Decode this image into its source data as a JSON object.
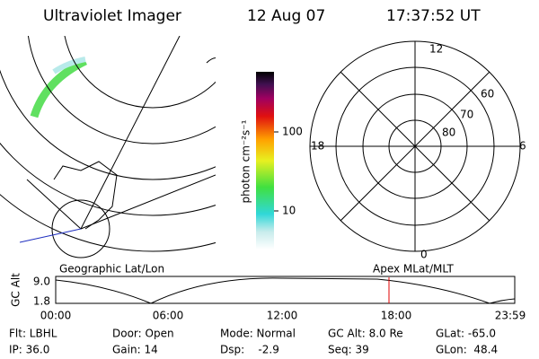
{
  "header": {
    "title": "Ultraviolet Imager",
    "date": "12 Aug 07",
    "time": "17:37:52 UT"
  },
  "colorbar": {
    "label": "photon cm⁻²s⁻¹",
    "ticks": [
      "100",
      "10"
    ]
  },
  "map": {
    "label": "Geographic Lat/Lon"
  },
  "polar": {
    "label": "Apex MLat/MLT",
    "mlt_labels": [
      "12",
      "18",
      "6",
      "0"
    ],
    "lat_labels": [
      "60",
      "70",
      "80"
    ]
  },
  "timeline": {
    "ylabel": "GC Alt",
    "yticks": [
      "9.0",
      "1.8"
    ],
    "xticks": [
      "00:00",
      "06:00",
      "12:00",
      "18:00",
      "23:59"
    ]
  },
  "footer": {
    "rows": [
      [
        "Flt: LBHL",
        "Door: Open",
        "Mode: Normal",
        "GC Alt: 8.0 Re",
        "GLat: -65.0"
      ],
      [
        "IP: 36.0",
        "Gain: 14",
        "Dsp:    -2.9",
        "Seq: 39",
        "GLon:  48.4"
      ]
    ]
  }
}
